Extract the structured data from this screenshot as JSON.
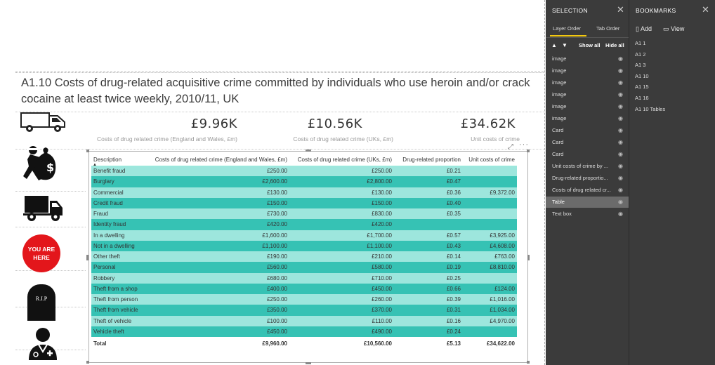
{
  "report": {
    "title": "A1.10 Costs of drug-related acquisitive crime committed by individuals who use heroin and/or crack cocaine at least twice weekly, 2010/11, UK"
  },
  "cards": [
    {
      "value": "£9.96K",
      "label": "Costs of drug related crime (England and Wales, £m)"
    },
    {
      "value": "£10.56K",
      "label": "Costs of drug related crime (UKs, £m)"
    },
    {
      "value": "£34.62K",
      "label": "Unit costs of crime"
    }
  ],
  "icons": {
    "van": "van-icon",
    "thief": "thief-with-money-bag-icon",
    "truck": "truck-icon",
    "you_are_here": "YOU ARE HERE",
    "rip": "R.I.P",
    "doctor": "doctor-icon"
  },
  "table": {
    "headers": [
      "Description",
      "Costs of drug related crime (England and Wales, £m)",
      "Costs of drug related crime (UKs, £m)",
      "Drug-related proportion",
      "Unit costs of crime"
    ],
    "rows": [
      [
        "Benefit fraud",
        "£250.00",
        "£250.00",
        "£0.21",
        ""
      ],
      [
        "Burglary",
        "£2,600.00",
        "£2,800.00",
        "£0.47",
        ""
      ],
      [
        "Commercial",
        "£130.00",
        "£130.00",
        "£0.36",
        "£9,372.00"
      ],
      [
        "Credit fraud",
        "£150.00",
        "£150.00",
        "£0.40",
        ""
      ],
      [
        "Fraud",
        "£730.00",
        "£830.00",
        "£0.35",
        ""
      ],
      [
        "Identity fraud",
        "£420.00",
        "£420.00",
        "",
        ""
      ],
      [
        "In a dwelling",
        "£1,600.00",
        "£1,700.00",
        "£0.57",
        "£3,925.00"
      ],
      [
        "Not in a dwelling",
        "£1,100.00",
        "£1,100.00",
        "£0.43",
        "£4,608.00"
      ],
      [
        "Other theft",
        "£190.00",
        "£210.00",
        "£0.14",
        "£763.00"
      ],
      [
        "Personal",
        "£560.00",
        "£580.00",
        "£0.19",
        "£8,810.00"
      ],
      [
        "Robbery",
        "£680.00",
        "£710.00",
        "£0.25",
        ""
      ],
      [
        "Theft from a shop",
        "£400.00",
        "£450.00",
        "£0.66",
        "£124.00"
      ],
      [
        "Theft from person",
        "£250.00",
        "£260.00",
        "£0.39",
        "£1,016.00"
      ],
      [
        "Theft from vehicle",
        "£350.00",
        "£370.00",
        "£0.31",
        "£1,034.00"
      ],
      [
        "Theft of vehicle",
        "£100.00",
        "£110.00",
        "£0.16",
        "£4,970.00"
      ],
      [
        "Vehicle theft",
        "£450.00",
        "£490.00",
        "£0.24",
        ""
      ]
    ],
    "total": [
      "Total",
      "£9,960.00",
      "£10,560.00",
      "£5.13",
      "£34,622.00"
    ],
    "sort_indicator": "▲",
    "focus_icon": "⤢",
    "more_icon": "···"
  },
  "selection_pane": {
    "title": "SELECTION",
    "tabs": [
      "Layer Order",
      "Tab Order"
    ],
    "show_all": "Show all",
    "hide_all": "Hide all",
    "items": [
      {
        "label": "image",
        "active": false
      },
      {
        "label": "image",
        "active": false
      },
      {
        "label": "image",
        "active": false
      },
      {
        "label": "image",
        "active": false
      },
      {
        "label": "image",
        "active": false
      },
      {
        "label": "image",
        "active": false
      },
      {
        "label": "Card",
        "active": false
      },
      {
        "label": "Card",
        "active": false
      },
      {
        "label": "Card",
        "active": false
      },
      {
        "label": "Unit costs of crime by ...",
        "active": false
      },
      {
        "label": "Drug-related proportio...",
        "active": false
      },
      {
        "label": "Costs of drug related cr...",
        "active": false
      },
      {
        "label": "Table",
        "active": true
      },
      {
        "label": "Text box",
        "active": false
      }
    ]
  },
  "bookmarks_pane": {
    "title": "BOOKMARKS",
    "add": "Add",
    "view": "View",
    "items": [
      "A1 1",
      "A1 2",
      "A1 3",
      "A1 10",
      "A1 15",
      "A1 16",
      "A1 10 Tables"
    ]
  },
  "colors": {
    "row_light": "#9de6dd",
    "row_dark": "#36c2b4",
    "pane_bg": "#3b3b3b",
    "accent": "#f2c811",
    "you_are_here_red": "#e3161b"
  }
}
